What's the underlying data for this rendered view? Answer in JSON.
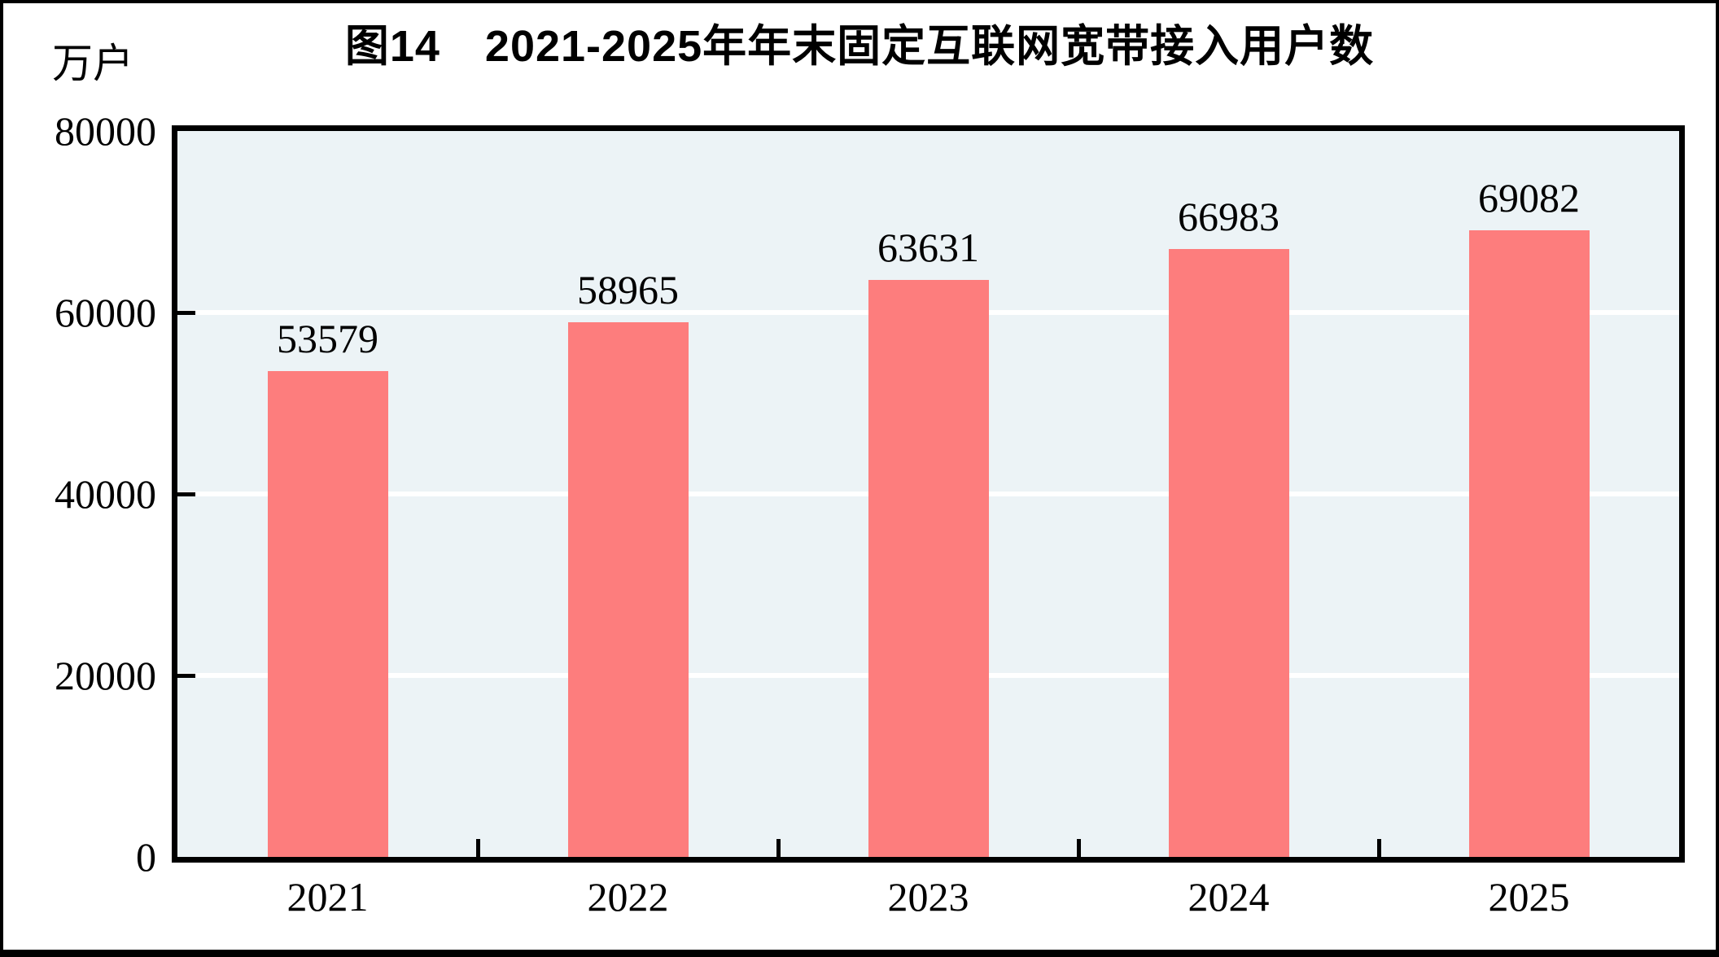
{
  "figure": {
    "title": "图14　2021-2025年年末固定互联网宽带接入用户数"
  },
  "chart_data": {
    "type": "bar",
    "title": "图14　2021-2025年年末固定互联网宽带接入用户数",
    "xlabel": "",
    "ylabel": "万户",
    "categories": [
      "2021",
      "2022",
      "2023",
      "2024",
      "2025"
    ],
    "values": [
      53579,
      58965,
      63631,
      66983,
      69082
    ],
    "value_labels": [
      "53579",
      "58965",
      "63631",
      "66983",
      "69082"
    ],
    "ylim": [
      0,
      80000
    ],
    "y_ticks": [
      0,
      20000,
      40000,
      60000,
      80000
    ],
    "y_tick_labels": [
      "0",
      "20000",
      "40000",
      "60000",
      "80000"
    ],
    "grid": "horizontal",
    "legend": "none",
    "colors": {
      "bar": "#FD7D7D",
      "plot_background": "#ECF3F6",
      "gridline": "#FFFFFF",
      "axis": "#000000",
      "text": "#000000"
    }
  }
}
